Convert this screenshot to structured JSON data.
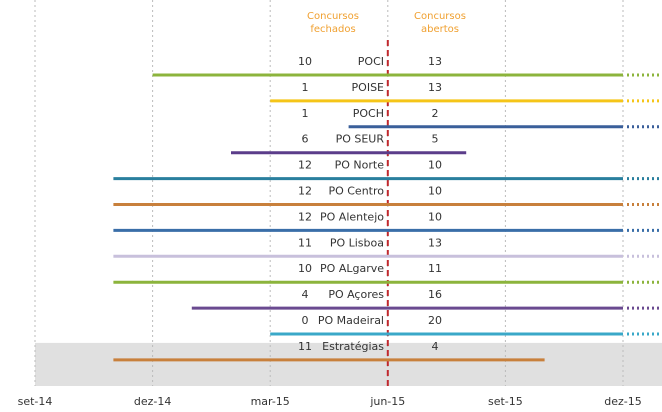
{
  "chart_data": {
    "type": "timeline",
    "header_closed": "Concursos fechados",
    "header_open": "Concursos abertos",
    "xlim": [
      0,
      15
    ],
    "xticks": [
      {
        "value": 0,
        "label": "set-14"
      },
      {
        "value": 3,
        "label": "dez-14"
      },
      {
        "value": 6,
        "label": "mar-15"
      },
      {
        "value": 9,
        "label": "jun-15"
      },
      {
        "value": 12,
        "label": "set-15"
      },
      {
        "value": 15,
        "label": "dez-15"
      }
    ],
    "reference_x": 9,
    "reference_color": "#c0282d",
    "grid": true,
    "rows": [
      {
        "name": "POCI",
        "closed": 10,
        "open": 13,
        "start": 3,
        "end": 15,
        "ongoing": true,
        "color": "#8cb43c"
      },
      {
        "name": "POISE",
        "closed": 1,
        "open": 13,
        "start": 6,
        "end": 15,
        "ongoing": true,
        "color": "#f5c518"
      },
      {
        "name": "POCH",
        "closed": 1,
        "open": 2,
        "start": 8,
        "end": 15,
        "ongoing": true,
        "color": "#3a5f9a"
      },
      {
        "name": "PO SEUR",
        "closed": 6,
        "open": 5,
        "start": 5,
        "end": 11,
        "ongoing": false,
        "color": "#5b3d8a"
      },
      {
        "name": "PO Norte",
        "closed": 12,
        "open": 10,
        "start": 2,
        "end": 15,
        "ongoing": true,
        "color": "#2a7f9e"
      },
      {
        "name": "PO Centro",
        "closed": 12,
        "open": 10,
        "start": 2,
        "end": 15,
        "ongoing": true,
        "color": "#c8803c"
      },
      {
        "name": "PO Alentejo",
        "closed": 12,
        "open": 10,
        "start": 2,
        "end": 15,
        "ongoing": true,
        "color": "#3a6ea8"
      },
      {
        "name": "PO Lisboa",
        "closed": 11,
        "open": 13,
        "start": 2,
        "end": 15,
        "ongoing": true,
        "color": "#c8c0dc"
      },
      {
        "name": "PO ALgarve",
        "closed": 10,
        "open": 11,
        "start": 2,
        "end": 15,
        "ongoing": true,
        "color": "#8cb43c"
      },
      {
        "name": "PO Açores",
        "closed": 4,
        "open": 16,
        "start": 4,
        "end": 15,
        "ongoing": true,
        "color": "#6a4a90"
      },
      {
        "name": "PO Madeiral",
        "closed": 0,
        "open": 20,
        "start": 6,
        "end": 15,
        "ongoing": true,
        "color": "#3aa8c8"
      },
      {
        "name": "Estratégias",
        "closed": 11,
        "open": 4,
        "start": 2,
        "end": 13,
        "ongoing": false,
        "color": "#c8803c",
        "highlighted": true
      }
    ]
  }
}
